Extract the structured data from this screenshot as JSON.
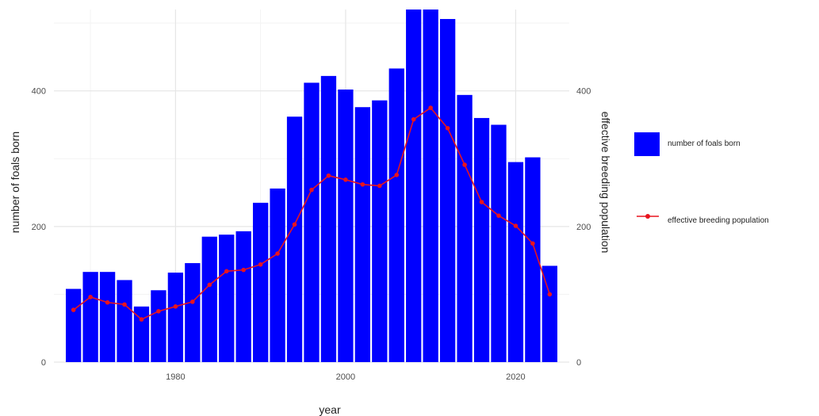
{
  "chart_data": {
    "type": "bar+line",
    "xlabel": "year",
    "ylabel": "number of foals born",
    "y2label": "effective breeding population",
    "xlim": [
      1965.7,
      2026.3
    ],
    "ylim": [
      0,
      520
    ],
    "y2lim": [
      0,
      520
    ],
    "xticks": [
      1980,
      2000,
      2020
    ],
    "yticks": [
      0,
      200,
      400
    ],
    "y2ticks": [
      0,
      200,
      400
    ],
    "grid": true,
    "legend_position": "right",
    "bar_width_years": 1.8,
    "series": [
      {
        "name": "number of foals born",
        "type": "bar",
        "color": "#0000ff",
        "x": [
          1968,
          1970,
          1972,
          1974,
          1976,
          1978,
          1980,
          1982,
          1984,
          1986,
          1988,
          1990,
          1992,
          1994,
          1996,
          1998,
          2000,
          2002,
          2004,
          2006,
          2008,
          2010,
          2012,
          2014,
          2016,
          2018,
          2020,
          2022,
          2024
        ],
        "values": [
          108,
          133,
          133,
          121,
          82,
          106,
          132,
          146,
          185,
          188,
          193,
          235,
          256,
          362,
          412,
          422,
          402,
          376,
          386,
          433,
          540,
          540,
          506,
          394,
          360,
          350,
          295,
          302,
          142
        ]
      },
      {
        "name": "effective breeding population",
        "type": "line",
        "color": "#e8141e",
        "x": [
          1968,
          1970,
          1972,
          1974,
          1976,
          1978,
          1980,
          1982,
          1984,
          1986,
          1988,
          1990,
          1992,
          1994,
          1996,
          1998,
          2000,
          2002,
          2004,
          2006,
          2008,
          2010,
          2012,
          2014,
          2016,
          2018,
          2020,
          2022,
          2024
        ],
        "values": [
          77,
          96,
          88,
          85,
          63,
          75,
          82,
          89,
          114,
          134,
          136,
          144,
          160,
          203,
          254,
          275,
          269,
          262,
          260,
          276,
          358,
          375,
          345,
          291,
          236,
          216,
          201,
          175,
          100
        ]
      }
    ]
  }
}
